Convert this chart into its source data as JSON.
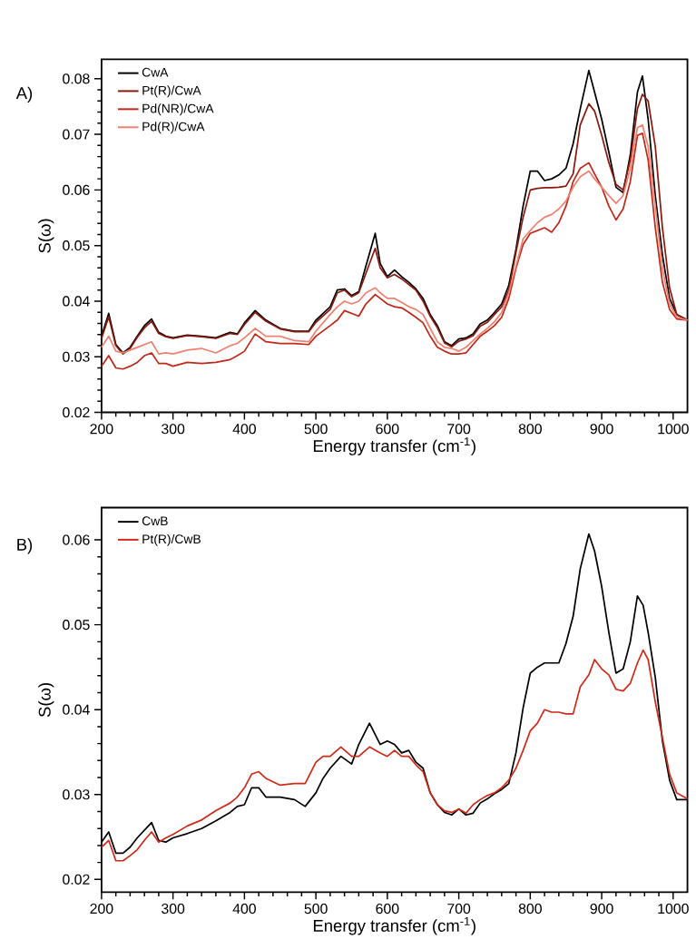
{
  "chart_data": [
    {
      "type": "line",
      "xlabel": "Energy transfer (cm$^{-1}$)",
      "ylabel": "S(ω)",
      "annotations": [
        "A)"
      ],
      "legend": "top left",
      "xlim": [
        200,
        1020
      ],
      "ylim": [
        0.02,
        0.0835
      ],
      "xticks": [
        200,
        300,
        400,
        500,
        600,
        700,
        800,
        900,
        1000
      ],
      "yticks": [
        0.02,
        0.03,
        0.04,
        0.05,
        0.06,
        0.07,
        0.08
      ],
      "x": [
        200,
        210,
        220,
        230,
        240,
        250,
        260,
        270,
        280,
        290,
        300,
        320,
        340,
        360,
        380,
        390,
        400,
        415,
        430,
        450,
        470,
        490,
        500,
        520,
        530,
        540,
        550,
        560,
        570,
        583,
        590,
        600,
        610,
        620,
        630,
        640,
        650,
        660,
        670,
        680,
        690,
        700,
        710,
        720,
        730,
        740,
        750,
        760,
        770,
        780,
        790,
        800,
        810,
        820,
        830,
        840,
        850,
        860,
        870,
        882,
        890,
        900,
        910,
        920,
        930,
        940,
        950,
        957,
        965,
        975,
        985,
        995,
        1005,
        1020
      ],
      "series": [
        {
          "name": "CwA",
          "color": "#000000",
          "values": [
            0.0337,
            0.0378,
            0.0322,
            0.0307,
            0.0317,
            0.0337,
            0.0356,
            0.0368,
            0.0344,
            0.0337,
            0.0334,
            0.0339,
            0.0337,
            0.0334,
            0.0344,
            0.0341,
            0.0361,
            0.0383,
            0.0366,
            0.0351,
            0.0346,
            0.0346,
            0.0366,
            0.039,
            0.042,
            0.0422,
            0.041,
            0.0417,
            0.0463,
            0.0522,
            0.0468,
            0.0444,
            0.0456,
            0.0444,
            0.0434,
            0.0422,
            0.0405,
            0.0376,
            0.0356,
            0.0327,
            0.032,
            0.0332,
            0.0334,
            0.0341,
            0.0359,
            0.0366,
            0.038,
            0.0395,
            0.0429,
            0.0493,
            0.0571,
            0.0634,
            0.0634,
            0.0617,
            0.062,
            0.0627,
            0.0639,
            0.0683,
            0.0746,
            0.0815,
            0.0776,
            0.0727,
            0.0668,
            0.0605,
            0.0595,
            0.0663,
            0.0776,
            0.0805,
            0.0727,
            0.059,
            0.0483,
            0.0405,
            0.0376,
            0.0366
          ]
        },
        {
          "name": "Pt(R)/CwA",
          "color": "#8b1a0e",
          "values": [
            0.0333,
            0.0372,
            0.032,
            0.0305,
            0.0315,
            0.0335,
            0.0352,
            0.0364,
            0.0342,
            0.0336,
            0.0333,
            0.0338,
            0.0336,
            0.0333,
            0.0342,
            0.034,
            0.0358,
            0.038,
            0.0364,
            0.035,
            0.0345,
            0.0345,
            0.0362,
            0.0385,
            0.0415,
            0.042,
            0.0408,
            0.0415,
            0.045,
            0.0495,
            0.046,
            0.0442,
            0.0448,
            0.044,
            0.043,
            0.042,
            0.04,
            0.0373,
            0.0352,
            0.0325,
            0.0318,
            0.0328,
            0.0332,
            0.0338,
            0.0355,
            0.0362,
            0.0376,
            0.039,
            0.042,
            0.0488,
            0.0551,
            0.06,
            0.0603,
            0.0604,
            0.0604,
            0.0605,
            0.0607,
            0.0629,
            0.0717,
            0.0755,
            0.0742,
            0.0698,
            0.0649,
            0.061,
            0.06,
            0.0654,
            0.0746,
            0.0772,
            0.076,
            0.0678,
            0.0532,
            0.0424,
            0.0376,
            0.0366
          ]
        },
        {
          "name": "Pd(NR)/CwA",
          "color": "#c0281a",
          "values": [
            0.0283,
            0.0302,
            0.028,
            0.0278,
            0.0283,
            0.029,
            0.0302,
            0.0307,
            0.0288,
            0.0288,
            0.0283,
            0.029,
            0.0288,
            0.029,
            0.0295,
            0.0302,
            0.031,
            0.0341,
            0.0327,
            0.0324,
            0.0324,
            0.0322,
            0.0337,
            0.0356,
            0.0366,
            0.0383,
            0.0378,
            0.0373,
            0.0395,
            0.0412,
            0.0405,
            0.0395,
            0.039,
            0.0388,
            0.038,
            0.0371,
            0.0361,
            0.0337,
            0.0317,
            0.031,
            0.0305,
            0.0305,
            0.0307,
            0.0322,
            0.0337,
            0.0346,
            0.0356,
            0.0371,
            0.0405,
            0.0459,
            0.0502,
            0.0522,
            0.0527,
            0.0532,
            0.0524,
            0.0541,
            0.0571,
            0.0615,
            0.0639,
            0.0649,
            0.0629,
            0.0605,
            0.0571,
            0.0546,
            0.0566,
            0.0615,
            0.0698,
            0.0702,
            0.0654,
            0.0532,
            0.0434,
            0.0385,
            0.0368,
            0.0366
          ]
        },
        {
          "name": "Pd(R)/CwA",
          "color": "#f08070",
          "values": [
            0.0317,
            0.0337,
            0.031,
            0.0307,
            0.0312,
            0.0317,
            0.0322,
            0.0327,
            0.0305,
            0.0307,
            0.0305,
            0.0312,
            0.0315,
            0.0307,
            0.032,
            0.0324,
            0.0334,
            0.0351,
            0.0337,
            0.0337,
            0.0329,
            0.0327,
            0.0346,
            0.0376,
            0.039,
            0.04,
            0.0395,
            0.04,
            0.0415,
            0.0424,
            0.0415,
            0.0405,
            0.0405,
            0.0398,
            0.039,
            0.0385,
            0.0376,
            0.0351,
            0.0327,
            0.0317,
            0.0315,
            0.031,
            0.0317,
            0.0329,
            0.0341,
            0.0351,
            0.0363,
            0.038,
            0.0415,
            0.0463,
            0.0512,
            0.0527,
            0.0541,
            0.0551,
            0.0556,
            0.0566,
            0.058,
            0.0605,
            0.0624,
            0.0634,
            0.062,
            0.0605,
            0.059,
            0.0576,
            0.059,
            0.0639,
            0.0712,
            0.0717,
            0.0678,
            0.0571,
            0.0459,
            0.0395,
            0.0371,
            0.0366
          ]
        }
      ]
    },
    {
      "type": "line",
      "xlabel": "Energy transfer (cm$^{-1}$)",
      "ylabel": "S(ω)",
      "annotations": [
        "B)"
      ],
      "legend": "top left",
      "xlim": [
        200,
        1020
      ],
      "ylim": [
        0.0185,
        0.0638
      ],
      "xticks": [
        200,
        300,
        400,
        500,
        600,
        700,
        800,
        900,
        1000
      ],
      "yticks": [
        0.02,
        0.03,
        0.04,
        0.05,
        0.06
      ],
      "x": [
        200,
        210,
        220,
        230,
        240,
        250,
        260,
        270,
        280,
        290,
        300,
        320,
        340,
        360,
        380,
        390,
        400,
        410,
        420,
        430,
        450,
        470,
        485,
        500,
        510,
        520,
        535,
        550,
        560,
        575,
        590,
        600,
        610,
        620,
        630,
        640,
        650,
        660,
        670,
        680,
        690,
        700,
        710,
        720,
        730,
        740,
        750,
        760,
        770,
        780,
        790,
        800,
        810,
        820,
        830,
        840,
        850,
        860,
        870,
        882,
        890,
        900,
        910,
        920,
        930,
        940,
        950,
        958,
        965,
        975,
        985,
        995,
        1005,
        1020
      ],
      "series": [
        {
          "name": "CwB",
          "color": "#000000",
          "values": [
            0.0244,
            0.0256,
            0.0231,
            0.0231,
            0.0238,
            0.0249,
            0.0258,
            0.0267,
            0.0246,
            0.0244,
            0.0249,
            0.0254,
            0.026,
            0.0269,
            0.0279,
            0.0286,
            0.0288,
            0.0308,
            0.0308,
            0.0297,
            0.0297,
            0.0294,
            0.0286,
            0.0302,
            0.0319,
            0.0331,
            0.0345,
            0.0336,
            0.0359,
            0.0384,
            0.0359,
            0.0363,
            0.0359,
            0.0349,
            0.0352,
            0.0338,
            0.0331,
            0.0302,
            0.0288,
            0.0279,
            0.0276,
            0.0283,
            0.0276,
            0.0278,
            0.029,
            0.0295,
            0.0301,
            0.0306,
            0.0313,
            0.0349,
            0.0402,
            0.0443,
            0.045,
            0.0455,
            0.0455,
            0.0455,
            0.0478,
            0.051,
            0.0566,
            0.0607,
            0.0587,
            0.0545,
            0.0491,
            0.0443,
            0.0448,
            0.048,
            0.0534,
            0.0523,
            0.0491,
            0.0438,
            0.0363,
            0.0317,
            0.0294,
            0.0294
          ]
        },
        {
          "name": "Pt(R)/CwB",
          "color": "#d02a1a",
          "values": [
            0.0238,
            0.0246,
            0.0222,
            0.0222,
            0.0228,
            0.0235,
            0.0246,
            0.0256,
            0.0244,
            0.0249,
            0.0253,
            0.0263,
            0.027,
            0.0281,
            0.029,
            0.0297,
            0.0308,
            0.0324,
            0.0327,
            0.0319,
            0.0311,
            0.0313,
            0.0313,
            0.0338,
            0.0345,
            0.0345,
            0.0356,
            0.0345,
            0.0345,
            0.0356,
            0.0349,
            0.0345,
            0.0352,
            0.0345,
            0.0345,
            0.0335,
            0.0327,
            0.0302,
            0.0288,
            0.0281,
            0.0279,
            0.0283,
            0.0278,
            0.0288,
            0.0294,
            0.0299,
            0.0302,
            0.0308,
            0.0317,
            0.0331,
            0.0352,
            0.0375,
            0.0384,
            0.04,
            0.0397,
            0.0397,
            0.0395,
            0.0395,
            0.0427,
            0.0441,
            0.0459,
            0.0448,
            0.0441,
            0.0424,
            0.0422,
            0.0431,
            0.0455,
            0.047,
            0.0459,
            0.0409,
            0.0367,
            0.0324,
            0.0302,
            0.0295
          ]
        }
      ]
    }
  ]
}
